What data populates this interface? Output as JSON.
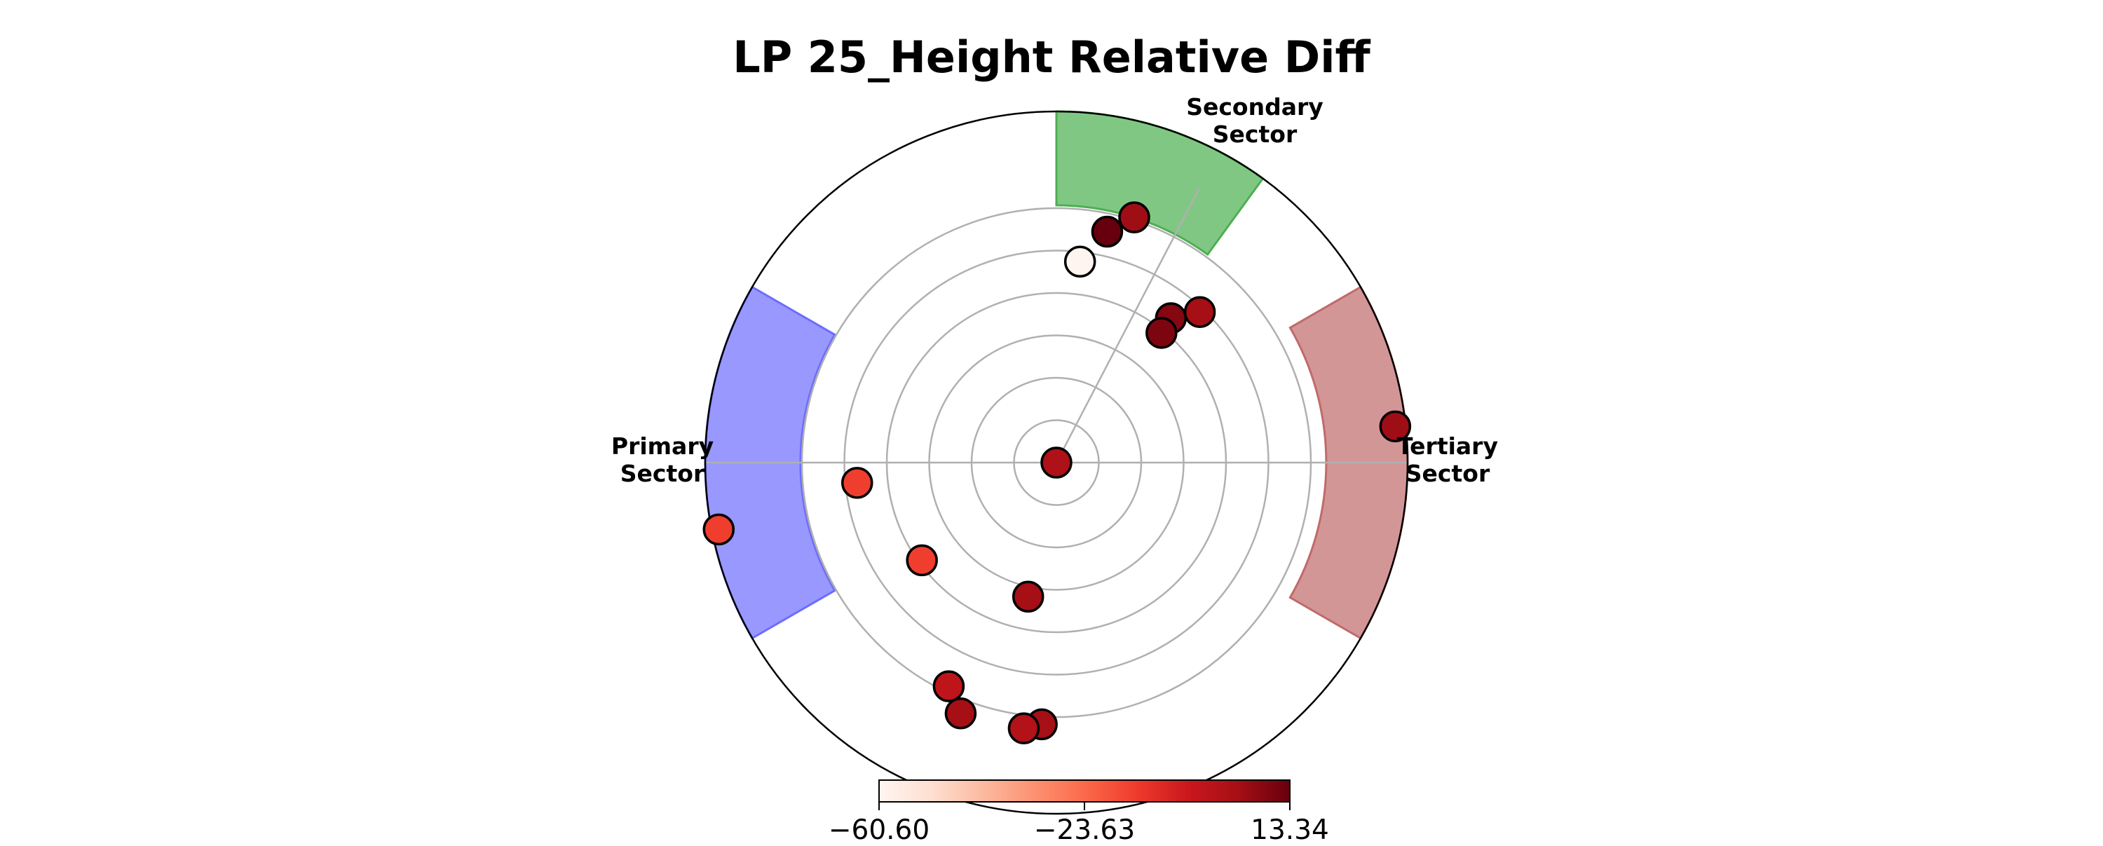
{
  "chart_data": {
    "type": "scatter",
    "subtype": "polar",
    "title": "LP 25_Height Relative Diff",
    "radial_rings": 6,
    "grid": true,
    "sectors": [
      {
        "name": "Secondary",
        "label": "Secondary\nSector",
        "theta_start_deg": 54,
        "theta_end_deg": 90,
        "r_inner": 3.7,
        "r_outer": 5.05,
        "color": "#4caf50"
      },
      {
        "name": "Primary",
        "label": "Primary\nSector",
        "theta_start_deg": 150,
        "theta_end_deg": 210,
        "r_inner": 3.68,
        "r_outer": 5.05,
        "color": "#6c6cff"
      },
      {
        "name": "Tertiary",
        "label": "Tertiary\nSector",
        "theta_start_deg": -30,
        "theta_end_deg": 30,
        "r_inner": 3.88,
        "r_outer": 5.05,
        "color": "#c06a6a"
      }
    ],
    "points": [
      {
        "theta_deg": 0,
        "r": 0,
        "value": 2.0
      },
      {
        "theta_deg": 77.6,
        "r": 3.4,
        "value": 13.3
      },
      {
        "theta_deg": 72.4,
        "r": 3.7,
        "value": 5.0
      },
      {
        "theta_deg": 83.3,
        "r": 2.91,
        "value": -60.6
      },
      {
        "theta_deg": 46.4,
        "r": 2.99,
        "value": 4.0
      },
      {
        "theta_deg": 51.6,
        "r": 2.65,
        "value": 9.0
      },
      {
        "theta_deg": 51.0,
        "r": 2.4,
        "value": 10.0
      },
      {
        "theta_deg": 6.1,
        "r": 4.9,
        "value": 5.0
      },
      {
        "theta_deg": 185.8,
        "r": 2.88,
        "value": -15.0
      },
      {
        "theta_deg": 191.2,
        "r": 4.95,
        "value": -15.0
      },
      {
        "theta_deg": 216.0,
        "r": 2.39,
        "value": -15.0
      },
      {
        "theta_deg": 258.1,
        "r": 1.97,
        "value": 4.0
      },
      {
        "theta_deg": 244.3,
        "r": 3.57,
        "value": -2.0
      },
      {
        "theta_deg": 249.1,
        "r": 3.86,
        "value": 4.0
      },
      {
        "theta_deg": 266.8,
        "r": 3.77,
        "value": 4.0
      },
      {
        "theta_deg": 263.0,
        "r": 3.85,
        "value": 1.0
      }
    ],
    "colorbar": {
      "colormap": "Reds",
      "min": -60.6,
      "max": 13.34,
      "ticks": [
        "−60.60",
        "−23.63",
        "13.34"
      ],
      "tick_values": [
        -60.6,
        -23.63,
        13.34
      ],
      "orientation": "horizontal",
      "position": "bottom"
    }
  }
}
